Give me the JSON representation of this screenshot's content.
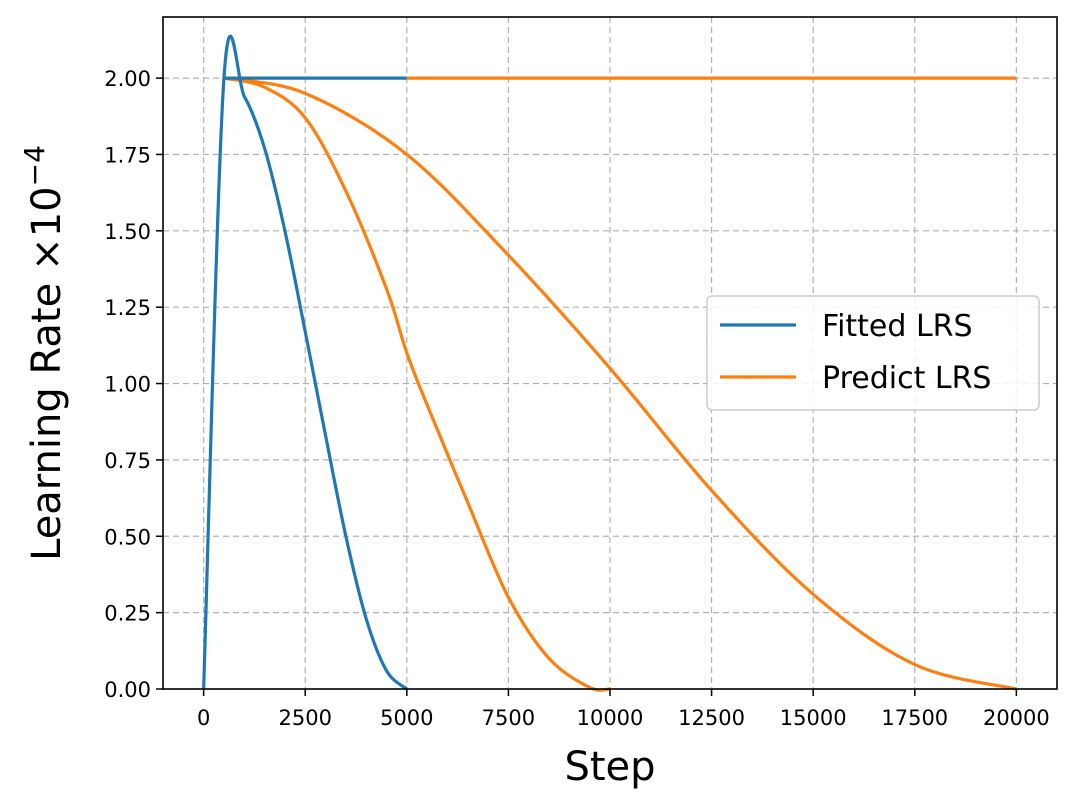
{
  "chart_data": {
    "type": "line",
    "title": "",
    "xlabel": "Step",
    "ylabel": "Learning Rate",
    "ylabel_multiplier": "×10",
    "ylabel_exponent": "−4",
    "xlim": [
      -1000,
      21000
    ],
    "ylim": [
      0,
      2.2
    ],
    "xticks": [
      0,
      2500,
      5000,
      7500,
      10000,
      12500,
      15000,
      17500,
      20000
    ],
    "xtick_labels": [
      "0",
      "2500",
      "5000",
      "7500",
      "10000",
      "12500",
      "15000",
      "17500",
      "20000"
    ],
    "yticks": [
      0,
      0.25,
      0.5,
      0.75,
      1.0,
      1.25,
      1.5,
      1.75,
      2.0
    ],
    "ytick_labels": [
      "0.00",
      "0.25",
      "0.50",
      "0.75",
      "1.00",
      "1.25",
      "1.50",
      "1.75",
      "2.00"
    ],
    "grid": true,
    "legend_position": "center-right",
    "series": [
      {
        "name": "Fitted LRS",
        "color": "#1f77b4",
        "segments": [
          [
            [
              0,
              0
            ],
            [
              500,
              2.0
            ],
            [
              1000,
              1.94
            ],
            [
              1500,
              1.77
            ],
            [
              2000,
              1.5
            ],
            [
              2500,
              1.17
            ],
            [
              3000,
              0.83
            ],
            [
              3500,
              0.5
            ],
            [
              4000,
              0.23
            ],
            [
              4500,
              0.06
            ],
            [
              5000,
              0.0
            ]
          ],
          [
            [
              500,
              2.0
            ],
            [
              5000,
              2.0
            ]
          ]
        ]
      },
      {
        "name": "Predict LRS",
        "color": "#ff7f0e",
        "segments": [
          [
            [
              500,
              2.0
            ],
            [
              1500,
              1.97
            ],
            [
              2500,
              1.87
            ],
            [
              3500,
              1.63
            ],
            [
              4500,
              1.31
            ],
            [
              5000,
              1.1
            ],
            [
              5500,
              0.93
            ],
            [
              6500,
              0.61
            ],
            [
              7500,
              0.3
            ],
            [
              8500,
              0.1
            ],
            [
              9500,
              0.005
            ],
            [
              10000,
              0.0
            ]
          ],
          [
            [
              500,
              2.0
            ],
            [
              2500,
              1.95
            ],
            [
              5000,
              1.75
            ],
            [
              7500,
              1.42
            ],
            [
              10000,
              1.05
            ],
            [
              12500,
              0.65
            ],
            [
              15000,
              0.31
            ],
            [
              17500,
              0.08
            ],
            [
              20000,
              0.0
            ]
          ],
          [
            [
              5000,
              2.0
            ],
            [
              20000,
              2.0
            ]
          ]
        ]
      }
    ]
  }
}
